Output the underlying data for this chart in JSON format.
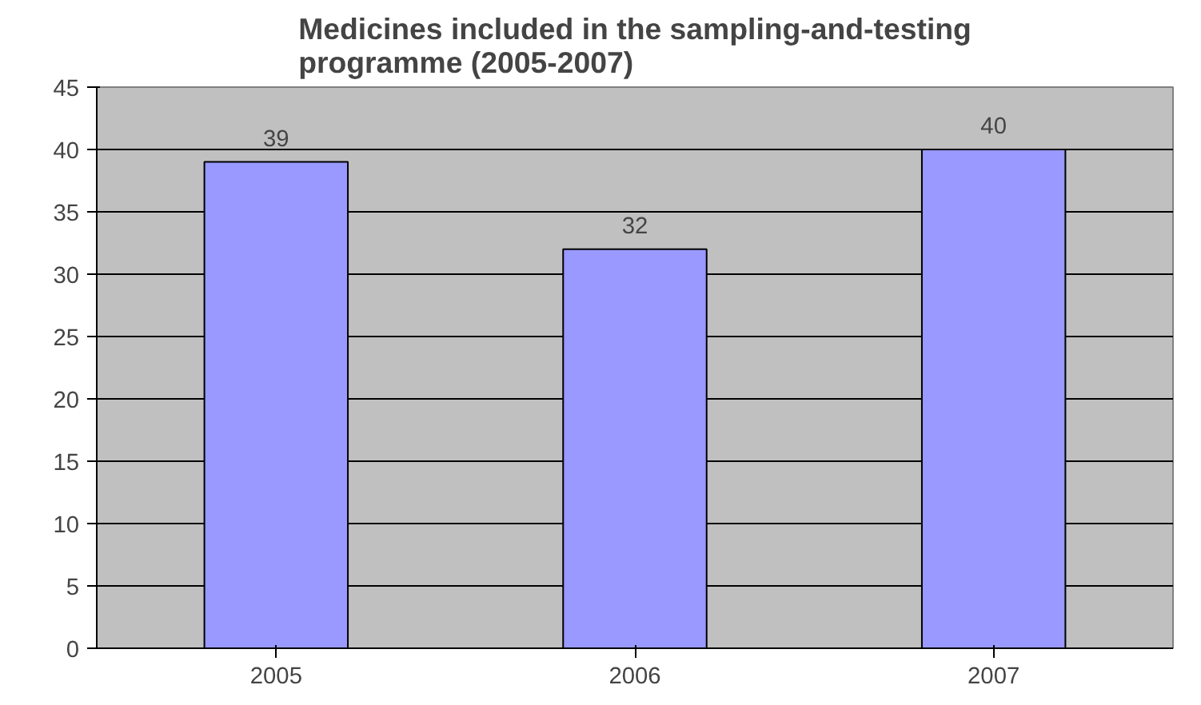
{
  "chart_data": {
    "type": "bar",
    "title": "Medicines included in the sampling-and-testing programme (2005-2007)",
    "categories": [
      "2005",
      "2006",
      "2007"
    ],
    "values": [
      39,
      32,
      40
    ],
    "color": "#9999ff",
    "ylim": [
      0,
      45
    ],
    "yticks": [
      0,
      5,
      10,
      15,
      20,
      25,
      30,
      35,
      40,
      45
    ],
    "grid": "y",
    "data_labels": true
  }
}
